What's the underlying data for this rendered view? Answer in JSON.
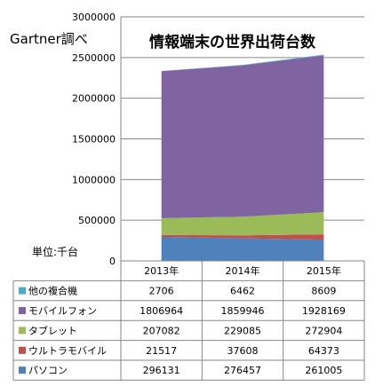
{
  "source_note": "Gartner調べ",
  "unit_label": "単位:千台",
  "chart_data": {
    "type": "area",
    "stacked": true,
    "title": "情報端末の世界出荷台数",
    "categories": [
      "2013年",
      "2014年",
      "2015年"
    ],
    "ylim": [
      0,
      3000000
    ],
    "y_ticks": [
      "0",
      "500000",
      "1000000",
      "1500000",
      "2000000",
      "2500000",
      "3000000"
    ],
    "grid": true,
    "legend": "data-table",
    "series": [
      {
        "name": "パソコン",
        "values": [
          296131,
          276457,
          261005
        ],
        "color": "#4f81bd"
      },
      {
        "name": "ウルトラモバイル",
        "values": [
          21517,
          37608,
          64373
        ],
        "color": "#c0504d"
      },
      {
        "name": "タブレット",
        "values": [
          207082,
          229085,
          272904
        ],
        "color": "#9bbb59"
      },
      {
        "name": "モバイルフォン",
        "values": [
          1806964,
          1859946,
          1928169
        ],
        "color": "#8064a2"
      },
      {
        "name": "他の複合機",
        "values": [
          2706,
          6462,
          8609
        ],
        "color": "#4bacc6"
      }
    ],
    "table_rows": [
      {
        "name": "他の複合機",
        "values": [
          "2706",
          "6462",
          "8609"
        ],
        "color": "#4bacc6"
      },
      {
        "name": "モバイルフォン",
        "values": [
          "1806964",
          "1859946",
          "1928169"
        ],
        "color": "#8064a2"
      },
      {
        "name": "タブレット",
        "values": [
          "207082",
          "229085",
          "272904"
        ],
        "color": "#9bbb59"
      },
      {
        "name": "ウルトラモバイル",
        "values": [
          "21517",
          "37608",
          "64373"
        ],
        "color": "#c0504d"
      },
      {
        "name": "パソコン",
        "values": [
          "296131",
          "276457",
          "261005"
        ],
        "color": "#4f81bd"
      }
    ]
  }
}
